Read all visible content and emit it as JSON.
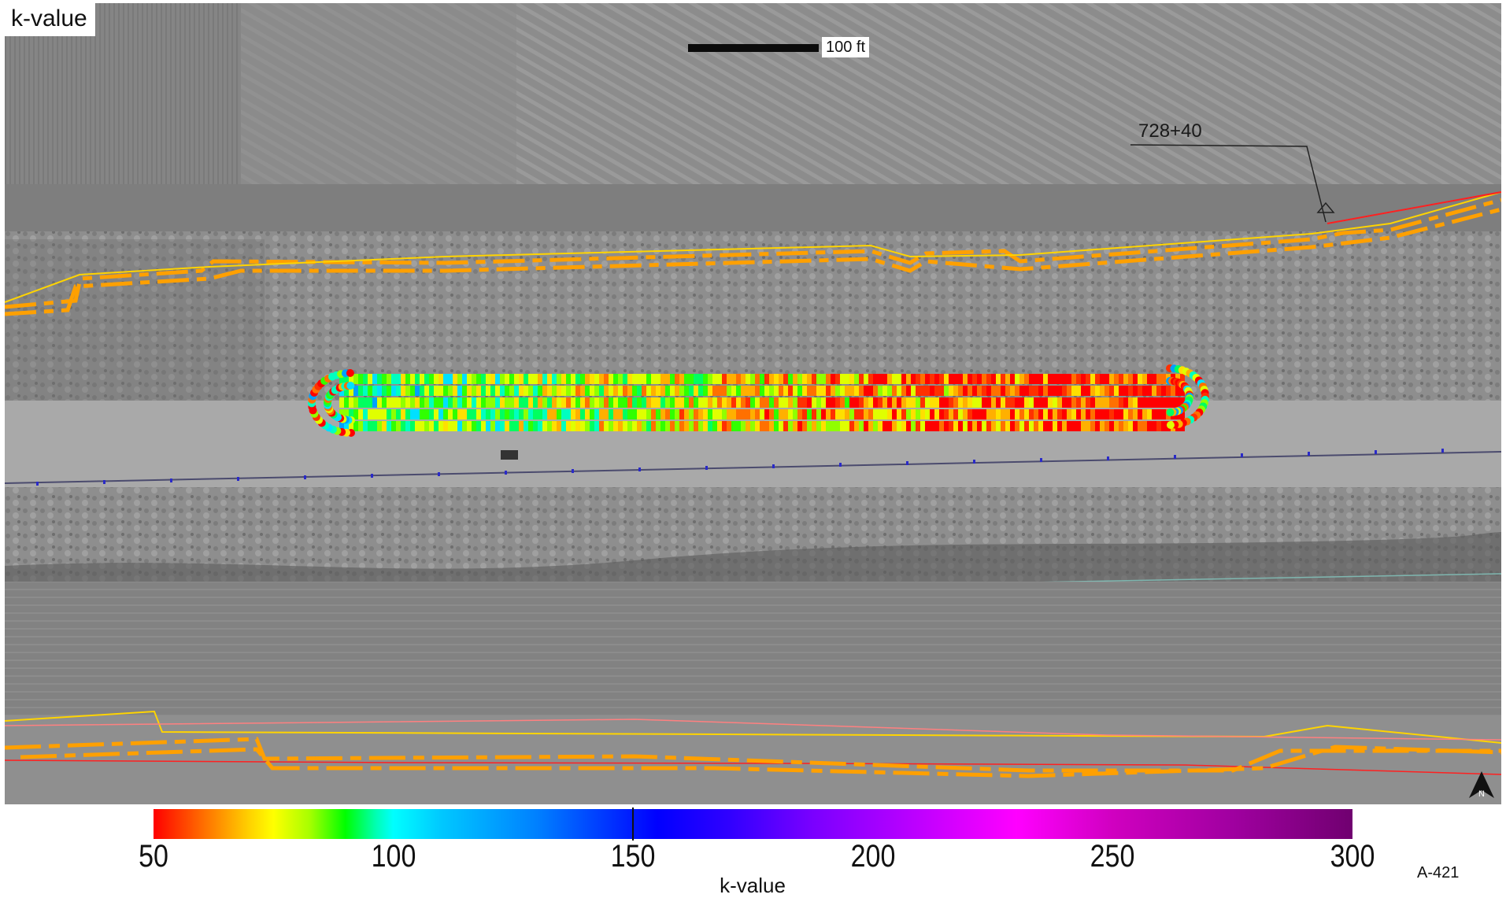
{
  "map": {
    "title": "k-value",
    "scale_label": "100 ft",
    "station_label": "728+40",
    "north_label": "N",
    "sheet_id": "A-421"
  },
  "legend": {
    "title": "k-value",
    "ticks": [
      "50",
      "100",
      "150",
      "200",
      "250",
      "300"
    ],
    "range": [
      50,
      300
    ],
    "marker_value": 150,
    "colors": {
      "low": "#ff0000",
      "mid_low": "#00ff00",
      "mid": "#00ffff",
      "mid_high": "#0000ff",
      "high": "#ff00ff",
      "max": "#700070"
    }
  },
  "colors": {
    "linework_orange": "#ffa000",
    "linework_yellow": "#ffd400",
    "linework_red": "#ff2020",
    "road": "#a8a8a8"
  }
}
